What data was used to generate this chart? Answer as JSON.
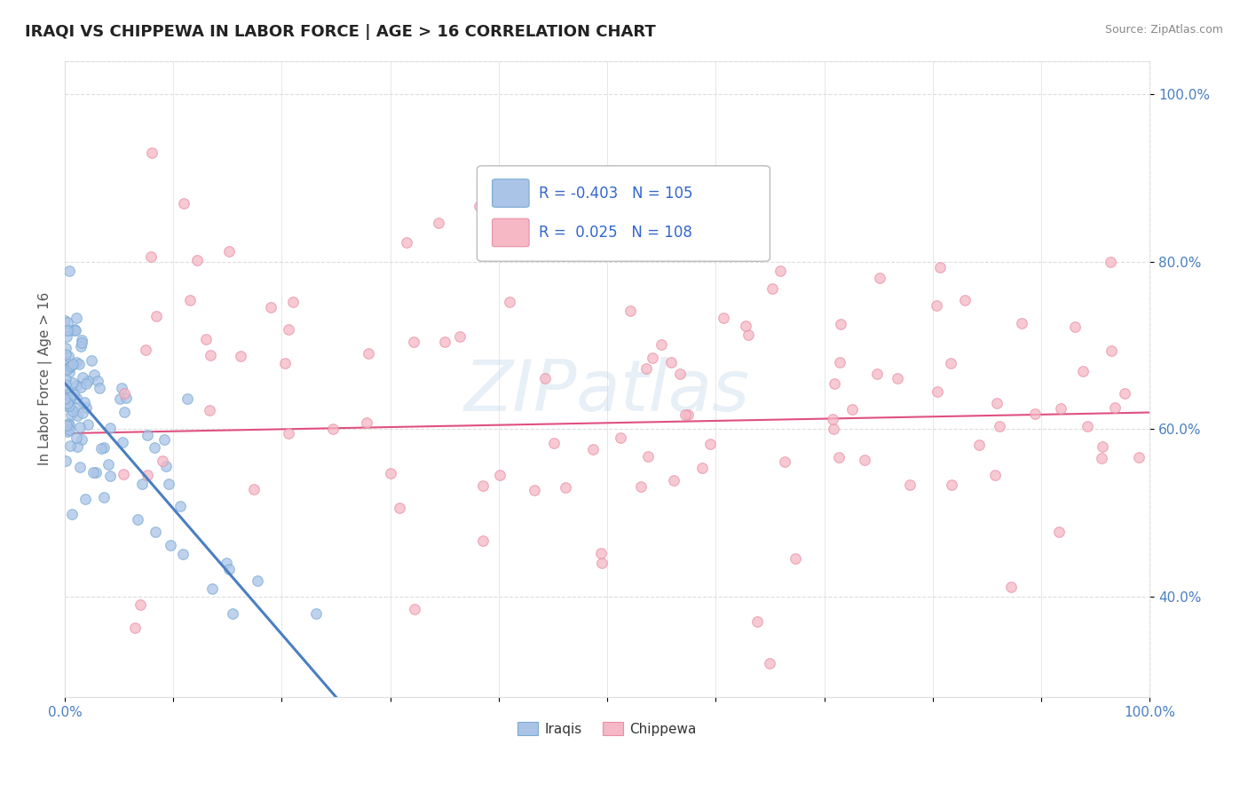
{
  "title": "IRAQI VS CHIPPEWA IN LABOR FORCE | AGE > 16 CORRELATION CHART",
  "source": "Source: ZipAtlas.com",
  "ylabel": "In Labor Force | Age > 16",
  "xlim": [
    0.0,
    1.0
  ],
  "ylim": [
    0.28,
    1.04
  ],
  "xticks": [
    0.0,
    0.1,
    0.2,
    0.3,
    0.4,
    0.5,
    0.6,
    0.7,
    0.8,
    0.9,
    1.0
  ],
  "yticks": [
    0.4,
    0.6,
    0.8,
    1.0
  ],
  "xticklabels_show": [
    "0.0%",
    "100.0%"
  ],
  "yticklabels": [
    "40.0%",
    "60.0%",
    "80.0%",
    "100.0%"
  ],
  "background_color": "#ffffff",
  "grid_color": "#dddddd",
  "watermark_text": "ZIPatlas",
  "legend_R_Iraqi": "-0.403",
  "legend_N_Iraqi": "105",
  "legend_R_Chippewa": "0.025",
  "legend_N_Chippewa": "108",
  "iraqi_color": "#aac4e8",
  "iraqi_edge_color": "#7aaad4",
  "chippewa_color": "#f5b8c4",
  "chippewa_edge_color": "#e890a8",
  "iraqi_line_color": "#4a7fc1",
  "chippewa_line_color": "#e05080",
  "trendline_dashed_color": "#b0c8e8",
  "tick_color": "#4a7fc1",
  "ylabel_color": "#555555",
  "title_color": "#222222",
  "source_color": "#888888",
  "legend_text_color": "#3366cc",
  "seed": 42
}
